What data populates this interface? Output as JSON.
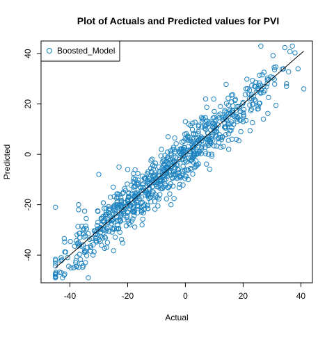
{
  "chart_data": {
    "type": "scatter",
    "title": "Plot of Actuals and Predicted values for PVI",
    "xlabel": "Actual",
    "ylabel": "Predicted",
    "xlim": [
      -50,
      44
    ],
    "ylim": [
      -51,
      45
    ],
    "xticks": [
      -40,
      -20,
      0,
      20,
      40
    ],
    "yticks": [
      -40,
      -20,
      0,
      20,
      40
    ],
    "grid": false,
    "legend": {
      "position": "top-left",
      "entries": [
        "Boosted_Model"
      ]
    },
    "colors": {
      "points": "#1f84c0",
      "line": "#000000",
      "axis": "#000000"
    },
    "series": [
      {
        "name": "Boosted_Model",
        "marker": "open-circle",
        "n_points": 800,
        "slope": 1.0,
        "intercept": -0.5,
        "noise_sd": 5.0,
        "x_distribution": {
          "min": -45,
          "max": 41,
          "center": -18,
          "sd": 13,
          "skew_tail_mean": 10,
          "skew_tail_sd": 12,
          "skew_tail_share": 0.35
        },
        "highlighted_points": [
          [
            -45,
            -21
          ],
          [
            -43,
            -41
          ],
          [
            -43,
            -47
          ],
          [
            -42,
            -48
          ],
          [
            -38,
            -43
          ],
          [
            -37,
            -20
          ],
          [
            -37,
            -22
          ],
          [
            -34,
            -37
          ],
          [
            -32,
            -40
          ],
          [
            -30,
            -8
          ],
          [
            -29,
            -28
          ],
          [
            -27,
            -35
          ],
          [
            -26,
            -17
          ],
          [
            -25,
            -13
          ],
          [
            -23,
            -5
          ],
          [
            -20,
            -6
          ],
          [
            -18,
            -13
          ],
          [
            -15,
            -28
          ],
          [
            -12,
            -17
          ],
          [
            -10,
            -12
          ],
          [
            -8,
            -3
          ],
          [
            -6,
            7
          ],
          [
            -5,
            -20
          ],
          [
            -3,
            -9
          ],
          [
            -2,
            1
          ],
          [
            0,
            13
          ],
          [
            1,
            -10
          ],
          [
            4,
            5
          ],
          [
            6,
            14
          ],
          [
            7,
            22
          ],
          [
            8,
            0
          ],
          [
            10,
            17
          ],
          [
            12,
            16
          ],
          [
            14,
            11
          ],
          [
            15,
            2
          ],
          [
            17,
            15
          ],
          [
            18,
            19
          ],
          [
            20,
            13
          ],
          [
            21,
            26
          ],
          [
            22,
            24
          ],
          [
            24,
            27
          ],
          [
            25,
            18
          ],
          [
            27,
            14
          ],
          [
            34,
            34
          ],
          [
            35,
            28
          ],
          [
            35,
            27
          ],
          [
            39,
            34
          ],
          [
            41,
            26
          ]
        ]
      }
    ],
    "reference_line": {
      "from": [
        -45,
        -45
      ],
      "to": [
        41,
        41
      ]
    }
  }
}
